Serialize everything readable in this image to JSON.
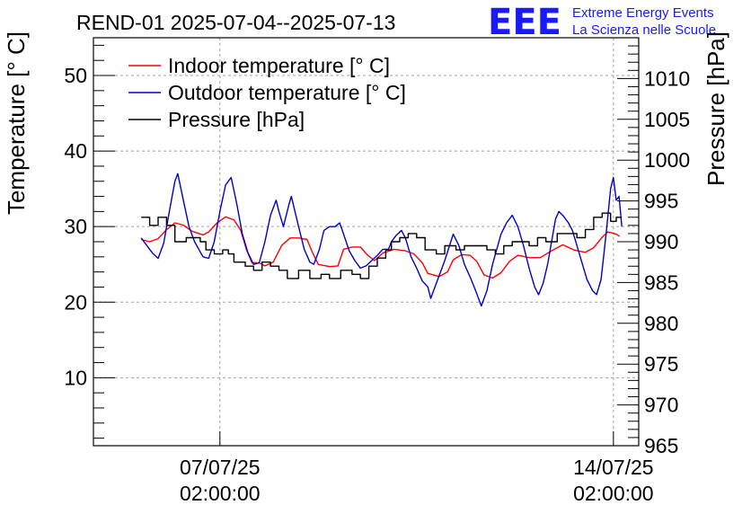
{
  "chart_data": {
    "type": "line",
    "title": "REND-01 2025-07-04--2025-07-13",
    "logo": {
      "text": "EEE",
      "line1": "Extreme Energy Events",
      "line2": "La Scienza nelle Scuole",
      "color": "#1a1aff"
    },
    "ylabel": "Temperature [° C]",
    "y2label": "Pressure [hPa]",
    "ylim": [
      1,
      55
    ],
    "y2lim": [
      965,
      1015
    ],
    "xlim": [
      0,
      9.7
    ],
    "yticks": [
      10,
      20,
      30,
      40,
      50
    ],
    "y2ticks": [
      965,
      970,
      975,
      980,
      985,
      990,
      995,
      1000,
      1005,
      1010
    ],
    "xticks": [
      {
        "x": 2.25,
        "line1": "07/07/25",
        "line2": "02:00:00"
      },
      {
        "x": 9.25,
        "line1": "14/07/25",
        "line2": "02:00:00"
      }
    ],
    "grid": true,
    "legend_position": "top-left",
    "series": [
      {
        "name": "Indoor temperature [° C]",
        "color": "#ff0000",
        "axis": "left",
        "points": [
          [
            0.85,
            28.3
          ],
          [
            1.0,
            28.0
          ],
          [
            1.15,
            28.4
          ],
          [
            1.3,
            29.6
          ],
          [
            1.45,
            30.5
          ],
          [
            1.6,
            30.2
          ],
          [
            1.75,
            29.4
          ],
          [
            1.95,
            28.9
          ],
          [
            2.05,
            29.3
          ],
          [
            2.2,
            30.5
          ],
          [
            2.35,
            31.3
          ],
          [
            2.5,
            30.9
          ],
          [
            2.62,
            29.5
          ],
          [
            2.72,
            27.0
          ],
          [
            2.82,
            25.2
          ],
          [
            2.95,
            25.2
          ],
          [
            3.05,
            24.8
          ],
          [
            3.2,
            25.3
          ],
          [
            3.35,
            27.5
          ],
          [
            3.5,
            28.5
          ],
          [
            3.65,
            28.5
          ],
          [
            3.8,
            28.3
          ],
          [
            3.9,
            26.5
          ],
          [
            4.0,
            25.0
          ],
          [
            4.2,
            24.7
          ],
          [
            4.35,
            24.8
          ],
          [
            4.45,
            27.0
          ],
          [
            4.6,
            27.3
          ],
          [
            4.75,
            27.3
          ],
          [
            4.88,
            26.2
          ],
          [
            5.0,
            25.5
          ],
          [
            5.15,
            26.5
          ],
          [
            5.35,
            27.0
          ],
          [
            5.55,
            26.8
          ],
          [
            5.7,
            26.4
          ],
          [
            5.85,
            25.2
          ],
          [
            5.95,
            23.8
          ],
          [
            6.15,
            23.4
          ],
          [
            6.3,
            24.0
          ],
          [
            6.4,
            25.6
          ],
          [
            6.55,
            26.3
          ],
          [
            6.7,
            26.2
          ],
          [
            6.82,
            25.4
          ],
          [
            6.95,
            23.6
          ],
          [
            7.1,
            23.2
          ],
          [
            7.25,
            23.9
          ],
          [
            7.4,
            25.4
          ],
          [
            7.55,
            26.2
          ],
          [
            7.75,
            25.9
          ],
          [
            7.95,
            25.9
          ],
          [
            8.15,
            26.8
          ],
          [
            8.35,
            27.6
          ],
          [
            8.55,
            26.9
          ],
          [
            8.75,
            26.6
          ],
          [
            8.9,
            27.2
          ],
          [
            9.05,
            28.6
          ],
          [
            9.15,
            29.3
          ],
          [
            9.3,
            29.0
          ],
          [
            9.36,
            28.7
          ]
        ]
      },
      {
        "name": "Outdoor temperature [° C]",
        "color": "#0000cc",
        "axis": "left",
        "points": [
          [
            0.85,
            28.5
          ],
          [
            0.95,
            27.5
          ],
          [
            1.05,
            26.5
          ],
          [
            1.15,
            25.8
          ],
          [
            1.25,
            27.8
          ],
          [
            1.35,
            32.0
          ],
          [
            1.45,
            36.0
          ],
          [
            1.5,
            37.0
          ],
          [
            1.6,
            33.5
          ],
          [
            1.7,
            30.0
          ],
          [
            1.8,
            28.0
          ],
          [
            1.95,
            26.0
          ],
          [
            2.05,
            25.8
          ],
          [
            2.15,
            28.0
          ],
          [
            2.25,
            32.0
          ],
          [
            2.35,
            35.5
          ],
          [
            2.45,
            36.5
          ],
          [
            2.55,
            33.0
          ],
          [
            2.65,
            29.0
          ],
          [
            2.75,
            26.5
          ],
          [
            2.85,
            25.0
          ],
          [
            2.95,
            25.2
          ],
          [
            3.05,
            28.0
          ],
          [
            3.15,
            31.5
          ],
          [
            3.25,
            33.5
          ],
          [
            3.3,
            32.0
          ],
          [
            3.38,
            30.0
          ],
          [
            3.48,
            33.0
          ],
          [
            3.52,
            34.0
          ],
          [
            3.65,
            30.0
          ],
          [
            3.75,
            27.0
          ],
          [
            3.85,
            25.3
          ],
          [
            3.92,
            25.0
          ],
          [
            4.02,
            27.0
          ],
          [
            4.1,
            29.5
          ],
          [
            4.2,
            30.0
          ],
          [
            4.3,
            30.0
          ],
          [
            4.38,
            30.5
          ],
          [
            4.45,
            29.0
          ],
          [
            4.55,
            26.8
          ],
          [
            4.65,
            25.5
          ],
          [
            4.75,
            24.5
          ],
          [
            4.85,
            24.8
          ],
          [
            4.95,
            25.5
          ],
          [
            5.05,
            26.2
          ],
          [
            5.15,
            27.0
          ],
          [
            5.25,
            27.0
          ],
          [
            5.3,
            28.0
          ],
          [
            5.38,
            28.8
          ],
          [
            5.48,
            29.5
          ],
          [
            5.55,
            28.5
          ],
          [
            5.65,
            26.0
          ],
          [
            5.75,
            24.5
          ],
          [
            5.85,
            22.8
          ],
          [
            5.95,
            22.0
          ],
          [
            6.0,
            20.5
          ],
          [
            6.1,
            22.5
          ],
          [
            6.25,
            25.5
          ],
          [
            6.4,
            29.0
          ],
          [
            6.5,
            27.5
          ],
          [
            6.6,
            25.0
          ],
          [
            6.72,
            23.0
          ],
          [
            6.8,
            21.5
          ],
          [
            6.9,
            19.5
          ],
          [
            7.0,
            21.5
          ],
          [
            7.1,
            25.0
          ],
          [
            7.25,
            29.0
          ],
          [
            7.35,
            30.5
          ],
          [
            7.45,
            31.5
          ],
          [
            7.55,
            30.0
          ],
          [
            7.65,
            27.5
          ],
          [
            7.75,
            24.5
          ],
          [
            7.85,
            22.0
          ],
          [
            7.92,
            21.0
          ],
          [
            8.0,
            22.5
          ],
          [
            8.08,
            25.0
          ],
          [
            8.15,
            28.0
          ],
          [
            8.22,
            31.0
          ],
          [
            8.28,
            32.0
          ],
          [
            8.35,
            31.5
          ],
          [
            8.45,
            30.5
          ],
          [
            8.52,
            29.5
          ],
          [
            8.6,
            27.5
          ],
          [
            8.7,
            25.0
          ],
          [
            8.78,
            23.0
          ],
          [
            8.88,
            21.5
          ],
          [
            8.95,
            21.0
          ],
          [
            9.03,
            23.0
          ],
          [
            9.12,
            29.0
          ],
          [
            9.2,
            35.0
          ],
          [
            9.25,
            36.5
          ],
          [
            9.3,
            33.5
          ],
          [
            9.35,
            34.0
          ],
          [
            9.4,
            30.0
          ]
        ]
      },
      {
        "name": "Pressure [hPa]",
        "color": "#000000",
        "axis": "right",
        "step": true,
        "points": [
          [
            0.85,
            993.0
          ],
          [
            1.0,
            992.0
          ],
          [
            1.15,
            993.0
          ],
          [
            1.3,
            992.0
          ],
          [
            1.45,
            990.0
          ],
          [
            1.65,
            990.5
          ],
          [
            1.9,
            990.0
          ],
          [
            2.0,
            989.0
          ],
          [
            2.15,
            988.5
          ],
          [
            2.3,
            989.0
          ],
          [
            2.4,
            988.5
          ],
          [
            2.5,
            987.5
          ],
          [
            2.7,
            987.0
          ],
          [
            2.85,
            986.5
          ],
          [
            3.0,
            987.5
          ],
          [
            3.15,
            987.0
          ],
          [
            3.3,
            986.5
          ],
          [
            3.45,
            985.5
          ],
          [
            3.65,
            986.5
          ],
          [
            3.85,
            985.5
          ],
          [
            4.05,
            986.0
          ],
          [
            4.2,
            985.5
          ],
          [
            4.4,
            986.5
          ],
          [
            4.6,
            986.0
          ],
          [
            4.75,
            985.5
          ],
          [
            4.9,
            987.0
          ],
          [
            5.05,
            988.0
          ],
          [
            5.2,
            989.0
          ],
          [
            5.3,
            990.0
          ],
          [
            5.45,
            990.5
          ],
          [
            5.6,
            991.0
          ],
          [
            5.75,
            990.5
          ],
          [
            5.9,
            989.0
          ],
          [
            6.1,
            988.5
          ],
          [
            6.25,
            989.5
          ],
          [
            6.45,
            989.0
          ],
          [
            6.6,
            989.5
          ],
          [
            6.8,
            989.5
          ],
          [
            7.0,
            989.0
          ],
          [
            7.15,
            988.5
          ],
          [
            7.3,
            989.5
          ],
          [
            7.45,
            990.0
          ],
          [
            7.6,
            990.0
          ],
          [
            7.75,
            989.5
          ],
          [
            7.9,
            990.5
          ],
          [
            8.05,
            990.0
          ],
          [
            8.25,
            991.0
          ],
          [
            8.45,
            991.0
          ],
          [
            8.6,
            990.5
          ],
          [
            8.75,
            991.5
          ],
          [
            8.9,
            993.0
          ],
          [
            9.05,
            993.5
          ],
          [
            9.2,
            992.5
          ],
          [
            9.3,
            993.0
          ],
          [
            9.4,
            993.0
          ]
        ]
      }
    ]
  }
}
